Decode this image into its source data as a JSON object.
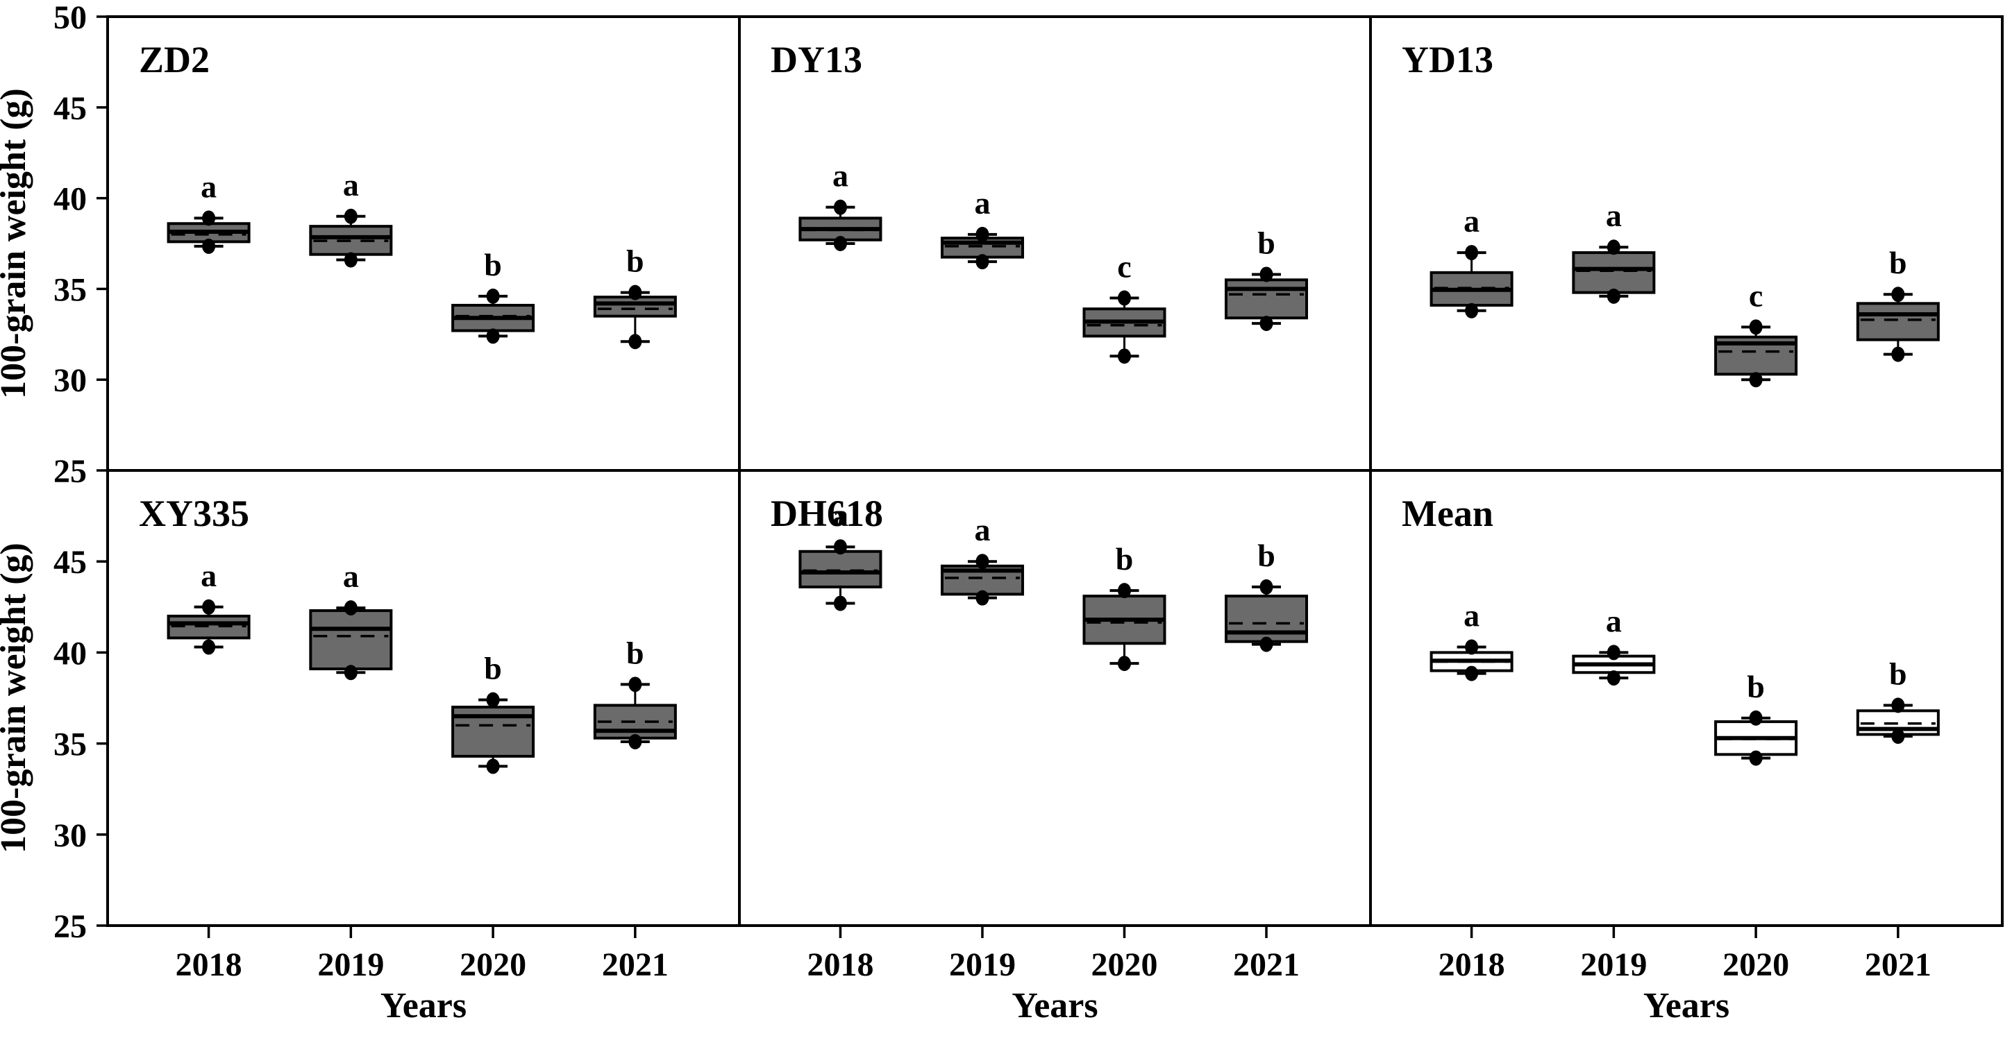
{
  "figure": {
    "ylabel": "100-grain weight (g)",
    "xlabel": "Years",
    "x_categories": [
      "2018",
      "2019",
      "2020",
      "2021"
    ],
    "yticks_top_row": [
      "50",
      "45",
      "40",
      "35",
      "30",
      "25"
    ],
    "yticks_bottom_row": [
      "45",
      "40",
      "35",
      "30",
      "25"
    ],
    "colors": {
      "variety_box_fill": "#6b6b6b",
      "mean_box_fill": "#ffffff",
      "line": "#000000",
      "background": "#ffffff"
    }
  },
  "chart_data": {
    "type": "boxplot",
    "ylim": [
      25,
      50
    ],
    "categories": [
      "2018",
      "2019",
      "2020",
      "2021"
    ],
    "grid": false,
    "legend": "none",
    "panels": [
      {
        "title": "ZD2",
        "row": 0,
        "col": 0,
        "fill": "#6b6b6b",
        "boxes": [
          {
            "year": "2018",
            "letter": "a",
            "whisker_low": 37.35,
            "q1": 37.6,
            "median": 38.15,
            "mean": 38.0,
            "q3": 38.6,
            "whisker_high": 38.9
          },
          {
            "year": "2019",
            "letter": "a",
            "whisker_low": 36.6,
            "q1": 36.9,
            "median": 37.85,
            "mean": 37.65,
            "q3": 38.45,
            "whisker_high": 39.0
          },
          {
            "year": "2020",
            "letter": "b",
            "whisker_low": 32.4,
            "q1": 32.7,
            "median": 33.4,
            "mean": 33.5,
            "q3": 34.1,
            "whisker_high": 34.6
          },
          {
            "year": "2021",
            "letter": "b",
            "whisker_low": 32.1,
            "q1": 33.5,
            "median": 34.2,
            "mean": 33.9,
            "q3": 34.55,
            "whisker_high": 34.8
          }
        ]
      },
      {
        "title": "DY13",
        "row": 0,
        "col": 1,
        "fill": "#6b6b6b",
        "boxes": [
          {
            "year": "2018",
            "letter": "a",
            "whisker_low": 37.5,
            "q1": 37.7,
            "median": 38.3,
            "mean": 38.25,
            "q3": 38.9,
            "whisker_high": 39.5
          },
          {
            "year": "2019",
            "letter": "a",
            "whisker_low": 36.5,
            "q1": 36.75,
            "median": 37.55,
            "mean": 37.35,
            "q3": 37.8,
            "whisker_high": 38.0
          },
          {
            "year": "2020",
            "letter": "c",
            "whisker_low": 31.3,
            "q1": 32.4,
            "median": 33.2,
            "mean": 33.0,
            "q3": 33.9,
            "whisker_high": 34.5
          },
          {
            "year": "2021",
            "letter": "b",
            "whisker_low": 33.1,
            "q1": 33.4,
            "median": 35.0,
            "mean": 34.7,
            "q3": 35.5,
            "whisker_high": 35.8
          }
        ]
      },
      {
        "title": "YD13",
        "row": 0,
        "col": 2,
        "fill": "#6b6b6b",
        "boxes": [
          {
            "year": "2018",
            "letter": "a",
            "whisker_low": 33.8,
            "q1": 34.1,
            "median": 34.95,
            "mean": 35.05,
            "q3": 35.9,
            "whisker_high": 37.0
          },
          {
            "year": "2019",
            "letter": "a",
            "whisker_low": 34.6,
            "q1": 34.8,
            "median": 36.1,
            "mean": 36.0,
            "q3": 37.0,
            "whisker_high": 37.3
          },
          {
            "year": "2020",
            "letter": "c",
            "whisker_low": 30.0,
            "q1": 30.3,
            "median": 32.0,
            "mean": 31.55,
            "q3": 32.35,
            "whisker_high": 32.9
          },
          {
            "year": "2021",
            "letter": "b",
            "whisker_low": 31.4,
            "q1": 32.2,
            "median": 33.6,
            "mean": 33.3,
            "q3": 34.2,
            "whisker_high": 34.7
          }
        ]
      },
      {
        "title": "XY335",
        "row": 1,
        "col": 0,
        "fill": "#6b6b6b",
        "boxes": [
          {
            "year": "2018",
            "letter": "a",
            "whisker_low": 40.3,
            "q1": 40.8,
            "median": 41.6,
            "mean": 41.45,
            "q3": 42.0,
            "whisker_high": 42.5
          },
          {
            "year": "2019",
            "letter": "a",
            "whisker_low": 38.9,
            "q1": 39.1,
            "median": 41.3,
            "mean": 40.9,
            "q3": 42.3,
            "whisker_high": 42.45
          },
          {
            "year": "2020",
            "letter": "b",
            "whisker_low": 33.75,
            "q1": 34.3,
            "median": 36.5,
            "mean": 36.0,
            "q3": 37.0,
            "whisker_high": 37.4
          },
          {
            "year": "2021",
            "letter": "b",
            "whisker_low": 35.1,
            "q1": 35.3,
            "median": 35.7,
            "mean": 36.2,
            "q3": 37.1,
            "whisker_high": 38.25
          }
        ]
      },
      {
        "title": "DH618",
        "row": 1,
        "col": 1,
        "fill": "#6b6b6b",
        "boxes": [
          {
            "year": "2018",
            "letter": "a",
            "whisker_low": 42.7,
            "q1": 43.6,
            "median": 44.4,
            "mean": 44.5,
            "q3": 45.55,
            "whisker_high": 45.8
          },
          {
            "year": "2019",
            "letter": "a",
            "whisker_low": 43.0,
            "q1": 43.2,
            "median": 44.5,
            "mean": 44.1,
            "q3": 44.75,
            "whisker_high": 45.0
          },
          {
            "year": "2020",
            "letter": "b",
            "whisker_low": 39.4,
            "q1": 40.5,
            "median": 41.8,
            "mean": 41.65,
            "q3": 43.1,
            "whisker_high": 43.4
          },
          {
            "year": "2021",
            "letter": "b",
            "whisker_low": 40.45,
            "q1": 40.6,
            "median": 41.1,
            "mean": 41.6,
            "q3": 43.1,
            "whisker_high": 43.6
          }
        ]
      },
      {
        "title": "Mean",
        "row": 1,
        "col": 2,
        "fill": "#ffffff",
        "boxes": [
          {
            "year": "2018",
            "letter": "a",
            "whisker_low": 38.85,
            "q1": 39.0,
            "median": 39.55,
            "mean": 39.5,
            "q3": 40.0,
            "whisker_high": 40.3
          },
          {
            "year": "2019",
            "letter": "a",
            "whisker_low": 38.6,
            "q1": 38.9,
            "median": 39.35,
            "mean": 39.3,
            "q3": 39.8,
            "whisker_high": 40.0
          },
          {
            "year": "2020",
            "letter": "b",
            "whisker_low": 34.2,
            "q1": 34.4,
            "median": 35.3,
            "mean": 35.25,
            "q3": 36.2,
            "whisker_high": 36.4
          },
          {
            "year": "2021",
            "letter": "b",
            "whisker_low": 35.4,
            "q1": 35.5,
            "median": 35.8,
            "mean": 36.1,
            "q3": 36.8,
            "whisker_high": 37.1
          }
        ]
      }
    ]
  }
}
